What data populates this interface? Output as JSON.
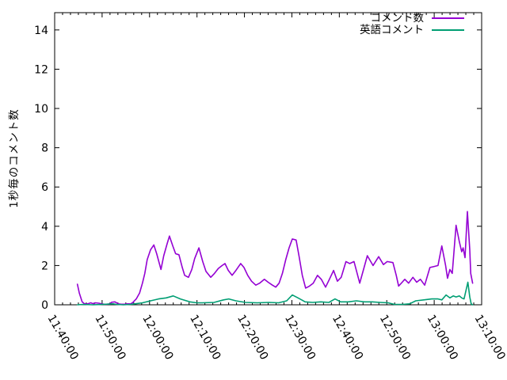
{
  "chart_data": {
    "type": "line",
    "title": "",
    "xlabel": "",
    "ylabel": "1秒毎のコメント数",
    "legend_position": "top-right-inside",
    "grid": false,
    "points_format": "[minutes after 11:40:00, comments per second]",
    "x_axis": {
      "range_minutes": [
        0,
        90
      ],
      "tick_minutes": [
        0,
        10,
        20,
        30,
        40,
        50,
        60,
        70,
        80,
        90
      ],
      "tick_labels": [
        "11:40:00",
        "11:50:00",
        "12:00:00",
        "12:10:00",
        "12:20:00",
        "12:30:00",
        "12:40:00",
        "12:50:00",
        "13:00:00",
        "13:10:00"
      ],
      "minor_subdivisions": 6,
      "label_rotation_deg": 60
    },
    "y_axis": {
      "range": [
        0,
        14.88
      ],
      "ticks": [
        0,
        2,
        4,
        6,
        8,
        10,
        12,
        14
      ]
    },
    "series": [
      {
        "name": "コメント数",
        "color": "#9400d3",
        "points": [
          [
            4.8,
            1.05
          ],
          [
            5.2,
            0.6
          ],
          [
            5.8,
            0.15
          ],
          [
            6.3,
            0.05
          ],
          [
            7.0,
            0.05
          ],
          [
            7.6,
            0.1
          ],
          [
            8.2,
            0.05
          ],
          [
            8.6,
            0.1
          ],
          [
            9.3,
            0.08
          ],
          [
            9.9,
            0.05
          ],
          [
            10.4,
            0.03
          ],
          [
            11.0,
            0.03
          ],
          [
            11.7,
            0.05
          ],
          [
            12.0,
            0.13
          ],
          [
            12.7,
            0.15
          ],
          [
            13.4,
            0.05
          ],
          [
            14.0,
            0.03
          ],
          [
            14.7,
            0.03
          ],
          [
            15.3,
            0.05
          ],
          [
            16.0,
            0.05
          ],
          [
            16.4,
            0.1
          ],
          [
            17.2,
            0.3
          ],
          [
            17.9,
            0.6
          ],
          [
            18.5,
            1.1
          ],
          [
            19.0,
            1.6
          ],
          [
            19.5,
            2.3
          ],
          [
            20.2,
            2.8
          ],
          [
            20.9,
            3.05
          ],
          [
            21.5,
            2.6
          ],
          [
            22.4,
            1.8
          ],
          [
            23.0,
            2.5
          ],
          [
            23.7,
            3.1
          ],
          [
            24.2,
            3.5
          ],
          [
            24.9,
            3.0
          ],
          [
            25.5,
            2.6
          ],
          [
            26.2,
            2.55
          ],
          [
            26.9,
            1.9
          ],
          [
            27.4,
            1.5
          ],
          [
            28.2,
            1.4
          ],
          [
            28.9,
            1.8
          ],
          [
            29.5,
            2.35
          ],
          [
            30.4,
            2.9
          ],
          [
            31.2,
            2.2
          ],
          [
            31.9,
            1.7
          ],
          [
            32.9,
            1.4
          ],
          [
            33.7,
            1.6
          ],
          [
            34.5,
            1.85
          ],
          [
            35.3,
            2.0
          ],
          [
            35.9,
            2.1
          ],
          [
            36.6,
            1.75
          ],
          [
            37.4,
            1.5
          ],
          [
            38.2,
            1.75
          ],
          [
            39.2,
            2.1
          ],
          [
            39.9,
            1.9
          ],
          [
            40.7,
            1.5
          ],
          [
            41.5,
            1.2
          ],
          [
            42.4,
            1.0
          ],
          [
            43.2,
            1.1
          ],
          [
            44.2,
            1.3
          ],
          [
            45.0,
            1.15
          ],
          [
            45.9,
            1.0
          ],
          [
            46.6,
            0.9
          ],
          [
            47.3,
            1.1
          ],
          [
            48.0,
            1.6
          ],
          [
            48.7,
            2.3
          ],
          [
            49.4,
            2.9
          ],
          [
            50.1,
            3.35
          ],
          [
            50.9,
            3.3
          ],
          [
            51.5,
            2.5
          ],
          [
            52.2,
            1.5
          ],
          [
            52.9,
            0.85
          ],
          [
            53.7,
            0.95
          ],
          [
            54.5,
            1.1
          ],
          [
            55.4,
            1.5
          ],
          [
            56.2,
            1.3
          ],
          [
            57.1,
            0.9
          ],
          [
            57.9,
            1.3
          ],
          [
            58.8,
            1.75
          ],
          [
            59.6,
            1.2
          ],
          [
            60.4,
            1.4
          ],
          [
            61.4,
            2.2
          ],
          [
            62.2,
            2.1
          ],
          [
            63.1,
            2.2
          ],
          [
            64.3,
            1.1
          ],
          [
            65.1,
            1.8
          ],
          [
            65.9,
            2.5
          ],
          [
            67.1,
            2.0
          ],
          [
            68.3,
            2.45
          ],
          [
            69.3,
            2.05
          ],
          [
            70.1,
            2.2
          ],
          [
            71.3,
            2.15
          ],
          [
            72.0,
            1.5
          ],
          [
            72.5,
            0.95
          ],
          [
            73.8,
            1.3
          ],
          [
            74.6,
            1.1
          ],
          [
            75.5,
            1.4
          ],
          [
            76.3,
            1.15
          ],
          [
            77.1,
            1.3
          ],
          [
            78.0,
            1.0
          ],
          [
            79.1,
            1.9
          ],
          [
            80.0,
            1.95
          ],
          [
            80.8,
            2.0
          ],
          [
            81.6,
            3.0
          ],
          [
            82.4,
            2.0
          ],
          [
            82.8,
            1.35
          ],
          [
            83.3,
            1.8
          ],
          [
            83.8,
            1.6
          ],
          [
            84.6,
            4.05
          ],
          [
            85.3,
            3.2
          ],
          [
            85.8,
            2.7
          ],
          [
            86.1,
            2.9
          ],
          [
            86.5,
            2.4
          ],
          [
            87.0,
            4.75
          ],
          [
            87.5,
            2.8
          ],
          [
            87.7,
            1.6
          ],
          [
            88.1,
            1.1
          ]
        ]
      },
      {
        "name": "英語コメント",
        "color": "#009e73",
        "points": [
          [
            4.8,
            0.0
          ],
          [
            6.0,
            0.02
          ],
          [
            8.0,
            0.0
          ],
          [
            10.0,
            0.02
          ],
          [
            12.3,
            0.05
          ],
          [
            13.0,
            0.02
          ],
          [
            14.5,
            0.0
          ],
          [
            16.0,
            0.02
          ],
          [
            16.9,
            0.05
          ],
          [
            18.5,
            0.1
          ],
          [
            20.2,
            0.2
          ],
          [
            21.9,
            0.3
          ],
          [
            23.5,
            0.35
          ],
          [
            25.0,
            0.45
          ],
          [
            26.5,
            0.3
          ],
          [
            28.5,
            0.15
          ],
          [
            30.0,
            0.1
          ],
          [
            31.1,
            0.1
          ],
          [
            33.6,
            0.12
          ],
          [
            35.6,
            0.25
          ],
          [
            36.7,
            0.3
          ],
          [
            38.2,
            0.2
          ],
          [
            40.2,
            0.12
          ],
          [
            42.7,
            0.1
          ],
          [
            45.2,
            0.12
          ],
          [
            47.2,
            0.1
          ],
          [
            48.9,
            0.2
          ],
          [
            50.1,
            0.5
          ],
          [
            51.3,
            0.35
          ],
          [
            52.8,
            0.15
          ],
          [
            54.4,
            0.12
          ],
          [
            56.1,
            0.15
          ],
          [
            57.8,
            0.12
          ],
          [
            59.1,
            0.3
          ],
          [
            60.3,
            0.15
          ],
          [
            61.9,
            0.15
          ],
          [
            63.6,
            0.2
          ],
          [
            65.3,
            0.15
          ],
          [
            66.9,
            0.15
          ],
          [
            68.6,
            0.12
          ],
          [
            70.3,
            0.1
          ],
          [
            71.6,
            0.02
          ],
          [
            73.3,
            0.02
          ],
          [
            74.8,
            0.05
          ],
          [
            76.1,
            0.2
          ],
          [
            77.8,
            0.25
          ],
          [
            79.5,
            0.3
          ],
          [
            80.8,
            0.3
          ],
          [
            81.6,
            0.25
          ],
          [
            82.5,
            0.5
          ],
          [
            83.3,
            0.35
          ],
          [
            84.0,
            0.45
          ],
          [
            84.6,
            0.4
          ],
          [
            85.3,
            0.45
          ],
          [
            85.8,
            0.35
          ],
          [
            86.3,
            0.3
          ],
          [
            87.1,
            1.15
          ],
          [
            87.5,
            0.4
          ],
          [
            87.8,
            0.05
          ],
          [
            88.1,
            0.0
          ]
        ]
      }
    ]
  }
}
